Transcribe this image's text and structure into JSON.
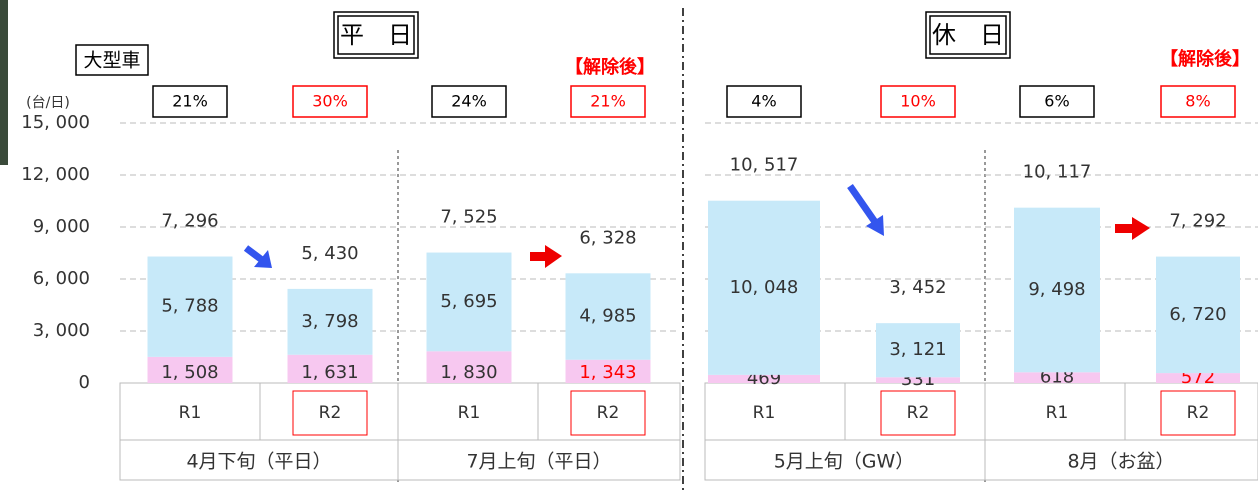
{
  "chart_data": {
    "type": "stacked_bar",
    "panel_titles": [
      "平　日",
      "休　日"
    ],
    "label": "大型車",
    "annotations": [
      "【解除後】",
      "【解除後】"
    ],
    "y_label": "(台/日)",
    "categories": [
      "R1",
      "R2",
      "R1",
      "R2",
      "R1",
      "R2",
      "R1",
      "R2"
    ],
    "groups": [
      "4月下旬（平日）",
      "7月上旬（平日）",
      "5月上旬（GW）",
      "8月（お盆）"
    ],
    "series": [
      {
        "color": "#f7c8f0",
        "values": [
          1508,
          1631,
          1830,
          1343,
          469,
          331,
          618,
          572
        ],
        "value_labels": [
          "1, 508",
          "1, 631",
          "1, 830",
          "1, 343",
          "469",
          "331",
          "618",
          "572"
        ],
        "value_label_colors": [
          "#333333",
          "#333333",
          "#333333",
          "#ff0000",
          "#333333",
          "#333333",
          "#333333",
          "#ff0000"
        ]
      },
      {
        "color": "#c7e9f9",
        "values": [
          5788,
          3798,
          5695,
          4985,
          10048,
          3121,
          9498,
          6720
        ],
        "value_labels": [
          "5, 788",
          "3, 798",
          "5, 695",
          "4, 985",
          "10, 048",
          "3, 121",
          "9, 498",
          "6, 720"
        ]
      }
    ],
    "totals": [
      7296,
      5430,
      7525,
      6328,
      10517,
      3452,
      10117,
      7292
    ],
    "total_labels": [
      "7, 296",
      "5, 430",
      "7, 525",
      "6, 328",
      "10, 517",
      "3, 452",
      "10, 117",
      "7, 292"
    ],
    "percents": [
      21,
      30,
      24,
      21,
      4,
      10,
      6,
      8
    ],
    "percent_labels": [
      "21%",
      "30%",
      "24%",
      "21%",
      "4%",
      "10%",
      "6%",
      "8%"
    ],
    "percent_colors": [
      "#000000",
      "#ff0000",
      "#000000",
      "#ff0000",
      "#000000",
      "#ff0000",
      "#000000",
      "#ff0000"
    ],
    "ylim": [
      0,
      15000
    ],
    "yticks": [
      0,
      {
        "value": 3000,
        "label": "3, 000"
      },
      {
        "value": 6000,
        "label": "6, 000"
      },
      {
        "value": 9000,
        "label": "9, 000"
      },
      {
        "value": 12000,
        "label": "12, 000"
      },
      {
        "value": 15000,
        "label": "15, 000"
      }
    ],
    "grid": true
  }
}
